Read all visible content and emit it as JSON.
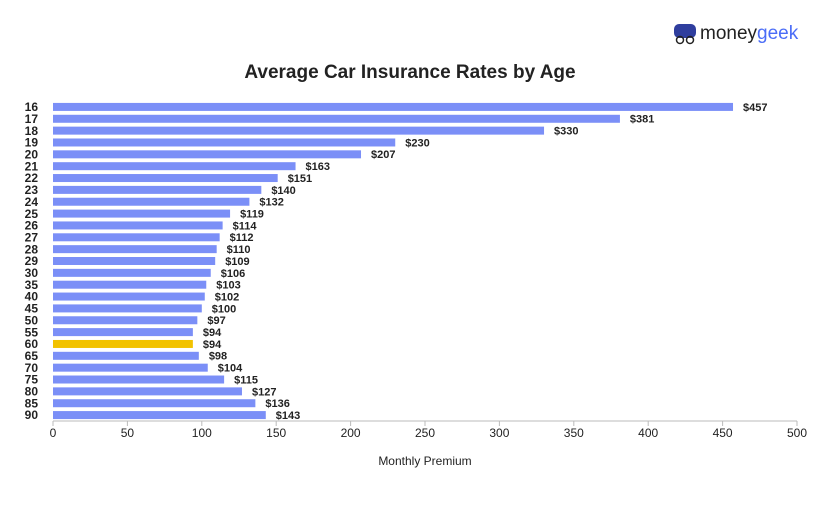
{
  "logo": {
    "first": "money",
    "second": "geek"
  },
  "chart_data": {
    "type": "bar",
    "orientation": "horizontal",
    "title": "Average Car Insurance Rates by Age",
    "x_label": "Monthly Premium",
    "categories": [
      "16",
      "17",
      "18",
      "19",
      "20",
      "21",
      "22",
      "23",
      "24",
      "25",
      "26",
      "27",
      "28",
      "29",
      "30",
      "35",
      "40",
      "45",
      "50",
      "55",
      "60",
      "65",
      "70",
      "75",
      "80",
      "85",
      "90"
    ],
    "values": [
      457,
      381,
      330,
      230,
      207,
      163,
      151,
      140,
      132,
      119,
      114,
      112,
      110,
      109,
      106,
      103,
      102,
      100,
      97,
      94,
      94,
      98,
      104,
      115,
      127,
      136,
      143
    ],
    "value_labels": [
      "$457",
      "$381",
      "$330",
      "$230",
      "$207",
      "$163",
      "$151",
      "$140",
      "$132",
      "$119",
      "$114",
      "$112",
      "$110",
      "$109",
      "$106",
      "$103",
      "$102",
      "$100",
      "$97",
      "$94",
      "$94",
      "$98",
      "$104",
      "$115",
      "$127",
      "$136",
      "$143"
    ],
    "colors": [
      "#7b8ff7",
      "#7b8ff7",
      "#7b8ff7",
      "#7b8ff7",
      "#7b8ff7",
      "#7b8ff7",
      "#7b8ff7",
      "#7b8ff7",
      "#7b8ff7",
      "#7b8ff7",
      "#7b8ff7",
      "#7b8ff7",
      "#7b8ff7",
      "#7b8ff7",
      "#7b8ff7",
      "#7b8ff7",
      "#7b8ff7",
      "#7b8ff7",
      "#7b8ff7",
      "#7b8ff7",
      "#f2c200",
      "#7b8ff7",
      "#7b8ff7",
      "#7b8ff7",
      "#7b8ff7",
      "#7b8ff7",
      "#7b8ff7"
    ],
    "xlim": [
      0,
      500
    ],
    "xticks": [
      0,
      50,
      100,
      150,
      200,
      250,
      300,
      350,
      400,
      450,
      500
    ],
    "grid": false
  }
}
